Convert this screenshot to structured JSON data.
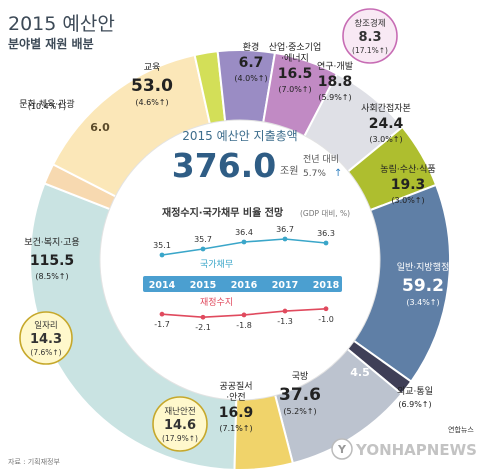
{
  "header": {
    "title": "2015 예산안",
    "subtitle": "분야별 재원 배분"
  },
  "center": {
    "label": "2015 예산안 지출총액",
    "total": "376.0",
    "unit": "조원",
    "yoy_label": "전년 대비",
    "yoy_value": "5.7%"
  },
  "arrow_glyph": "↑",
  "colors": {
    "welfare": "#c9e3e2",
    "culture": "#f7d9b0",
    "education": "#fbe7b8",
    "environment": "#d3df58",
    "industry": "#9a8cc4",
    "rnd": "#c18ac4",
    "creative": "#c76cb4",
    "soc": "#dfe0e6",
    "agri": "#aebe2f",
    "admin": "#5f7fa6",
    "diplomacy": "#3f3f57",
    "defense": "#bcc3cf",
    "safety": "#f0d36a",
    "bubble_fill": "#fff8cc",
    "bubble_creative": "#f8e9f4",
    "debt_line": "#3aa6c9",
    "fiscal_line": "#e04a5e",
    "year_band": "#4b9fd0"
  },
  "chart_data": [
    {
      "type": "pie",
      "title": "2015 예산안",
      "subtitle": "분야별 재원 배분",
      "unit": "조원",
      "total": 376.0,
      "slices": [
        {
          "key": "welfare",
          "name": "보건·복지·고용",
          "value": 115.5,
          "change": "(8.5%",
          "slice_label": ""
        },
        {
          "key": "culture",
          "name": "문화·체육·관광",
          "value": 6.0,
          "change": "(10.4%",
          "slice_label": "6.0"
        },
        {
          "key": "education",
          "name": "교육",
          "value": 53.0,
          "change": "(4.6%",
          "slice_label": ""
        },
        {
          "key": "environment",
          "name": "환경",
          "value": 6.7,
          "change": "(4.0%",
          "slice_label": ""
        },
        {
          "key": "industry",
          "name": "산업·중소기업·에너지",
          "value": 16.5,
          "change": "(7.0%",
          "slice_label": ""
        },
        {
          "key": "rnd",
          "name": "연구·개발",
          "value": 18.8,
          "change": "(5.9%",
          "slice_label": ""
        },
        {
          "key": "soc",
          "name": "사회간접자본",
          "value": 24.4,
          "change": "(3.0%",
          "slice_label": ""
        },
        {
          "key": "agri",
          "name": "농림·수산·식품",
          "value": 19.3,
          "change": "(3.0%",
          "slice_label": ""
        },
        {
          "key": "admin",
          "name": "일반·지방행정",
          "value": 59.2,
          "change": "(3.4%",
          "slice_label": ""
        },
        {
          "key": "diplomacy",
          "name": "외교·통일",
          "value": 4.5,
          "change": "(6.9%",
          "slice_label": "4.5"
        },
        {
          "key": "defense",
          "name": "국방",
          "value": 37.6,
          "change": "(5.2%",
          "slice_label": ""
        },
        {
          "key": "safety",
          "name": "공공질서·안전",
          "value": 16.9,
          "change": "(7.1%",
          "slice_label": ""
        }
      ],
      "callouts": [
        {
          "key": "creative",
          "name": "창조경제",
          "value": 8.3,
          "change": "(17.1%"
        },
        {
          "key": "jobs",
          "name": "일자리",
          "value": 14.3,
          "change": "(7.6%"
        },
        {
          "key": "disaster",
          "name": "재난안전",
          "value": 14.6,
          "change": "(17.9%"
        }
      ]
    },
    {
      "type": "line",
      "title": "재정수지·국가채무 비율 전망",
      "title_note": "(GDP 대비, %)",
      "categories": [
        "2014",
        "2015",
        "2016",
        "2017",
        "2018"
      ],
      "series": [
        {
          "name": "국가채무",
          "values": [
            35.1,
            35.7,
            36.4,
            36.7,
            36.3
          ],
          "labels": [
            "35.1",
            "35.7",
            "36.4",
            "36.7",
            "36.3"
          ]
        },
        {
          "name": "재정수지",
          "values": [
            -1.7,
            -2.1,
            -1.8,
            -1.3,
            -1.0
          ],
          "labels": [
            "-1.7",
            "-2.1",
            "-1.8",
            "-1.3",
            "-1.0"
          ]
        }
      ]
    }
  ],
  "footer": {
    "source": "자료 : 기획재정부",
    "logo_mark": "Y",
    "watermark": "YONHAPNEWS",
    "credit": "연합뉴스"
  }
}
